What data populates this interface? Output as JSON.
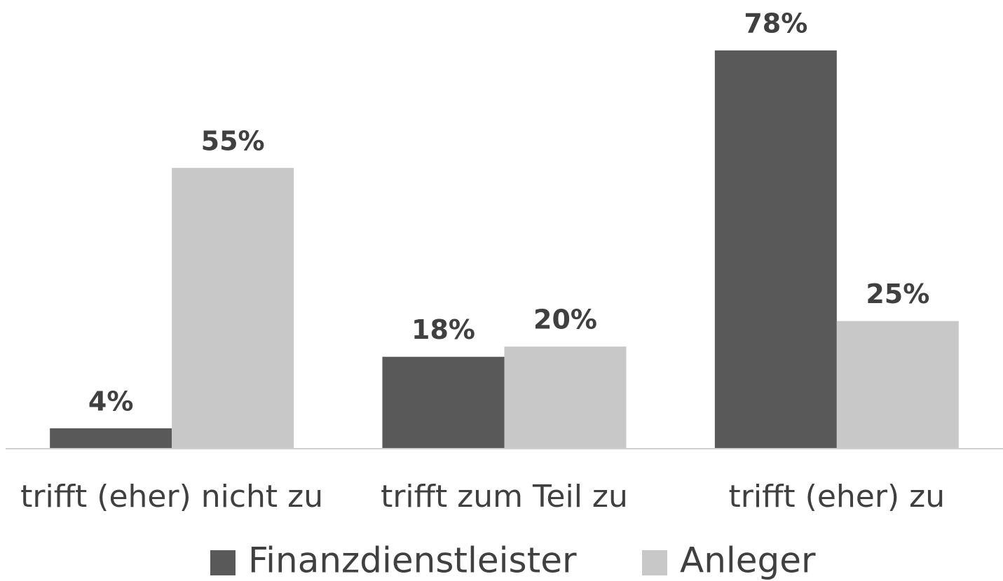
{
  "chart_data": {
    "type": "bar",
    "categories": [
      "trifft (eher) nicht zu",
      "trifft zum Teil zu",
      "trifft (eher) zu"
    ],
    "series": [
      {
        "name": "Finanzdienstleister",
        "color": "#595959",
        "values": [
          4,
          18,
          78
        ],
        "value_labels": [
          "4%",
          "18%",
          "78%"
        ]
      },
      {
        "name": "Anleger",
        "color": "#c8c8c8",
        "values": [
          55,
          20,
          25
        ],
        "value_labels": [
          "55%",
          "20%",
          "25%"
        ]
      }
    ],
    "ylim": [
      0,
      85
    ],
    "grid": false,
    "legend": "bottom"
  }
}
